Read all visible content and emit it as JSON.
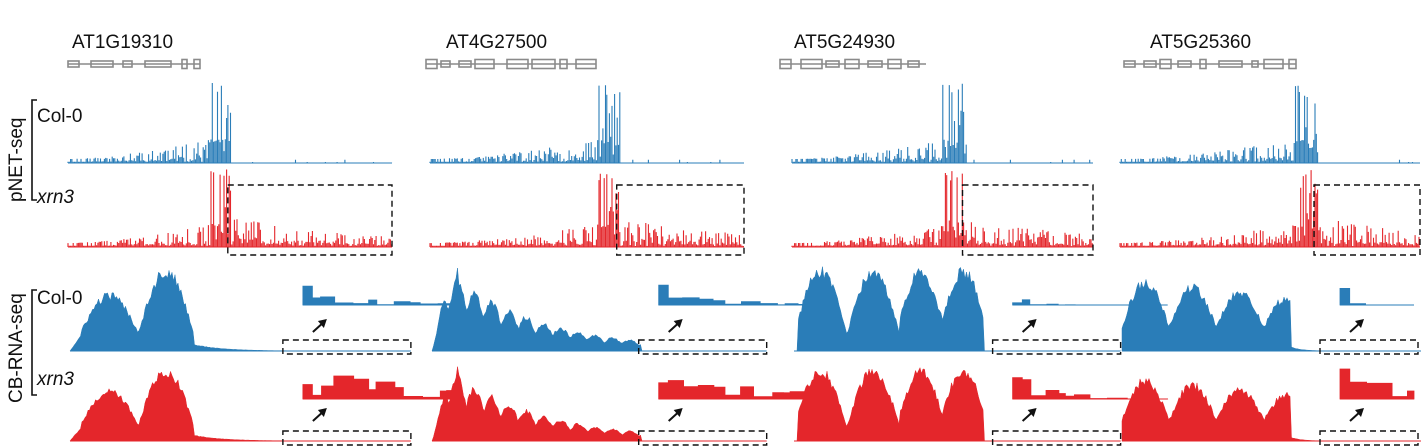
{
  "chart_data": {
    "type": "area",
    "assay_labels": [
      "pNET-seq",
      "CB-RNA-seq"
    ],
    "sample_labels": [
      "Col-0",
      "xrn3"
    ],
    "genes": [
      {
        "name": "AT1G19310",
        "structure": "gene-model"
      },
      {
        "name": "AT4G27500",
        "structure": "gene-model"
      },
      {
        "name": "AT5G24930",
        "structure": "gene-model"
      },
      {
        "name": "AT5G25360",
        "structure": "gene-model"
      }
    ],
    "colors": {
      "Col-0": "#2a7db8",
      "xrn3": "#e4262b",
      "gene_model": "#8a8a8a",
      "frame": "#111111"
    },
    "tracks": [
      {
        "assay": "pNET-seq",
        "sample": "Col-0",
        "kind": "bar"
      },
      {
        "assay": "pNET-seq",
        "sample": "xrn3",
        "kind": "bar",
        "highlight": "downstream readthrough region (dashed box)"
      },
      {
        "assay": "CB-RNA-seq",
        "sample": "Col-0",
        "kind": "area",
        "inset": "zoom of dashed region"
      },
      {
        "assay": "CB-RNA-seq",
        "sample": "xrn3",
        "kind": "area",
        "inset": "zoom of dashed region"
      }
    ]
  }
}
